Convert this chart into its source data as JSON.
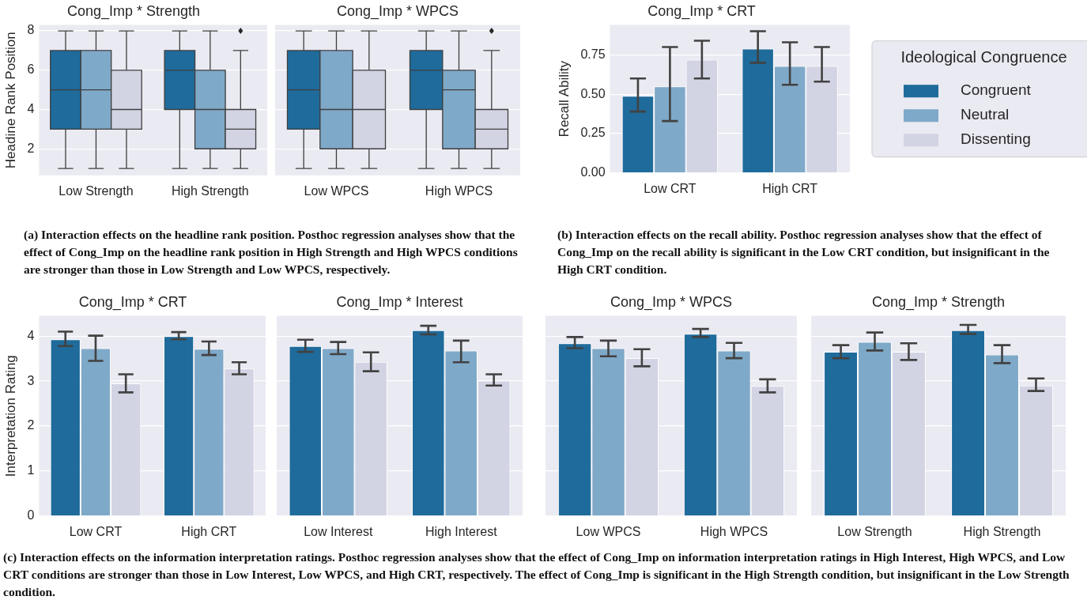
{
  "chart_data": [
    {
      "type": "box",
      "title": "Cong_Imp * Strength",
      "ylabel": "Headine Rank Position",
      "categories": [
        "Low Strength",
        "High Strength"
      ],
      "ylim": [
        0.65,
        8.3
      ],
      "yticks": [
        2,
        4,
        6,
        8
      ],
      "grid": "y",
      "annotations": [
        "(a) Interaction effects on the headline rank position. Posthoc regression analyses show that the effect of Cong_Imp on the headline rank position in High Strength and High WPCS conditions are stronger than those in Low Strength and Low WPCS, respectively."
      ],
      "series": [
        {
          "color": "#1f6b9b",
          "boxes": [
            {
              "low": 1,
              "q1": 3,
              "median": 5,
              "q3": 7,
              "high": 8
            },
            {
              "low": 1,
              "q1": 4,
              "median": 6,
              "q3": 7,
              "high": 8
            }
          ]
        },
        {
          "color": "#7fa9c8",
          "boxes": [
            {
              "low": 1,
              "q1": 3,
              "median": 5,
              "q3": 7,
              "high": 8
            },
            {
              "low": 1,
              "q1": 2,
              "median": 4,
              "q3": 6,
              "high": 8
            }
          ]
        },
        {
          "color": "#d2d4e4",
          "boxes": [
            {
              "low": 1,
              "q1": 3,
              "median": 4,
              "q3": 6,
              "high": 8
            },
            {
              "low": 1,
              "q1": 2,
              "median": 3,
              "q3": 4,
              "high": 7,
              "outliers": [
                8
              ]
            }
          ]
        }
      ]
    },
    {
      "type": "box",
      "title": "Cong_Imp * WPCS",
      "categories": [
        "Low WPCS",
        "High WPCS"
      ],
      "ylim": [
        0.65,
        8.3
      ],
      "yticks": [
        2,
        4,
        6,
        8
      ],
      "grid": "y",
      "tick_labels": "x",
      "series": [
        {
          "color": "#1f6b9b",
          "boxes": [
            {
              "low": 1,
              "q1": 3,
              "median": 5,
              "q3": 7,
              "high": 8
            },
            {
              "low": 1,
              "q1": 4,
              "median": 6,
              "q3": 7,
              "high": 8
            }
          ]
        },
        {
          "color": "#7fa9c8",
          "boxes": [
            {
              "low": 1,
              "q1": 2,
              "median": 4,
              "q3": 7,
              "high": 8
            },
            {
              "low": 1,
              "q1": 2,
              "median": 5,
              "q3": 6,
              "high": 8
            }
          ]
        },
        {
          "color": "#d2d4e4",
          "boxes": [
            {
              "low": 1,
              "q1": 2,
              "median": 4,
              "q3": 6,
              "high": 8
            },
            {
              "low": 1,
              "q1": 2,
              "median": 3,
              "q3": 4,
              "high": 7,
              "outliers": [
                8
              ]
            }
          ]
        }
      ]
    },
    {
      "type": "bar",
      "title": "Cong_Imp * CRT",
      "ylabel": "Recall Ability",
      "categories": [
        "Low CRT",
        "High CRT"
      ],
      "ylim": [
        0,
        0.94
      ],
      "yticks": [
        {
          "value": 0,
          "label": "0.00"
        },
        0.25,
        {
          "value": 0.5,
          "label": "0.50"
        },
        0.75
      ],
      "grid": "y",
      "legend": "right",
      "legend_title": "Ideological Congruence",
      "annotations": [
        "(b) Interaction effects on the recall ability. Posthoc regression analyses show that the effect of Cong_Imp on the recall ability is significant in the Low CRT condition, but insignificant in the High CRT condition."
      ],
      "series": [
        {
          "name": "Congruent",
          "color": "#1f6b9b",
          "values": [
            0.49,
            0.79
          ],
          "errors": [
            [
              0.39,
              0.6
            ],
            [
              0.7,
              0.9
            ]
          ]
        },
        {
          "name": "Neutral",
          "color": "#7fa9c8",
          "values": [
            0.55,
            0.68
          ],
          "errors": [
            [
              0.33,
              0.8
            ],
            [
              0.56,
              0.83
            ]
          ]
        },
        {
          "name": "Dissenting",
          "color": "#d2d4e4",
          "values": [
            0.72,
            0.68
          ],
          "errors": [
            [
              0.6,
              0.84
            ],
            [
              0.58,
              0.8
            ]
          ]
        }
      ]
    },
    {
      "type": "bar",
      "title": "Cong_Imp * CRT",
      "ylabel": "Interpretation Rating",
      "categories": [
        "Low CRT",
        "High CRT"
      ],
      "ylim": [
        0,
        4.45
      ],
      "yticks": [
        0,
        1,
        2,
        3,
        4
      ],
      "grid": "y",
      "annotations": [
        "(c) Interaction effects on the information interpretation ratings. Posthoc regression analyses show that the effect of Cong_Imp on information interpretation ratings in High Interest, High WPCS, and Low CRT conditions are stronger than those in Low Interest, Low WPCS, and High CRT, respectively. The effect of Cong_Imp is significant in the High Strength condition, but insignificant in the Low Strength condition."
      ],
      "series": [
        {
          "color": "#1f6b9b",
          "values": [
            3.93,
            4.0
          ],
          "errors": [
            [
              3.78,
              4.1
            ],
            [
              3.93,
              4.09
            ]
          ]
        },
        {
          "color": "#7fa9c8",
          "values": [
            3.73,
            3.72
          ],
          "errors": [
            [
              3.45,
              4.01
            ],
            [
              3.58,
              3.88
            ]
          ]
        },
        {
          "color": "#d2d4e4",
          "values": [
            2.95,
            3.28
          ],
          "errors": [
            [
              2.75,
              3.15
            ],
            [
              3.15,
              3.42
            ]
          ]
        }
      ]
    },
    {
      "type": "bar",
      "title": "Cong_Imp * Interest",
      "categories": [
        "Low Interest",
        "High Interest"
      ],
      "ylim": [
        0,
        4.45
      ],
      "yticks": [
        0,
        1,
        2,
        3,
        4
      ],
      "grid": "y",
      "tick_labels": "x",
      "series": [
        {
          "color": "#1f6b9b",
          "values": [
            3.78,
            4.13
          ],
          "errors": [
            [
              3.65,
              3.92
            ],
            [
              4.04,
              4.23
            ]
          ]
        },
        {
          "color": "#7fa9c8",
          "values": [
            3.73,
            3.68
          ],
          "errors": [
            [
              3.6,
              3.87
            ],
            [
              3.42,
              3.9
            ]
          ]
        },
        {
          "color": "#d2d4e4",
          "values": [
            3.43,
            3.01
          ],
          "errors": [
            [
              3.22,
              3.64
            ],
            [
              2.9,
              3.15
            ]
          ]
        }
      ]
    },
    {
      "type": "bar",
      "title": "Cong_Imp * WPCS",
      "categories": [
        "Low WPCS",
        "High WPCS"
      ],
      "ylim": [
        0,
        4.45
      ],
      "yticks": [
        0,
        1,
        2,
        3,
        4
      ],
      "grid": "y",
      "tick_labels": "x",
      "series": [
        {
          "color": "#1f6b9b",
          "values": [
            3.84,
            4.05
          ],
          "errors": [
            [
              3.73,
              3.98
            ],
            [
              3.98,
              4.16
            ]
          ]
        },
        {
          "color": "#7fa9c8",
          "values": [
            3.73,
            3.68
          ],
          "errors": [
            [
              3.55,
              3.9
            ],
            [
              3.51,
              3.85
            ]
          ]
        },
        {
          "color": "#d2d4e4",
          "values": [
            3.51,
            2.89
          ],
          "errors": [
            [
              3.33,
              3.71
            ],
            [
              2.75,
              3.04
            ]
          ]
        }
      ]
    },
    {
      "type": "bar",
      "title": "Cong_Imp * Strength",
      "categories": [
        "Low Strength",
        "High Strength"
      ],
      "ylim": [
        0,
        4.45
      ],
      "yticks": [
        0,
        1,
        2,
        3,
        4
      ],
      "grid": "y",
      "tick_labels": "x",
      "series": [
        {
          "color": "#1f6b9b",
          "values": [
            3.65,
            4.13
          ],
          "errors": [
            [
              3.51,
              3.8
            ],
            [
              4.05,
              4.25
            ]
          ]
        },
        {
          "color": "#7fa9c8",
          "values": [
            3.87,
            3.59
          ],
          "errors": [
            [
              3.68,
              4.08
            ],
            [
              3.4,
              3.8
            ]
          ]
        },
        {
          "color": "#d2d4e4",
          "values": [
            3.65,
            2.9
          ],
          "errors": [
            [
              3.47,
              3.84
            ],
            [
              2.78,
              3.06
            ]
          ]
        }
      ]
    }
  ]
}
